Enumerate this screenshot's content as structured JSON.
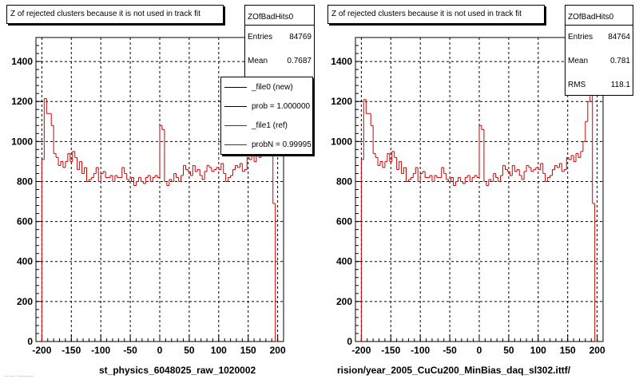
{
  "left_panel": {
    "title": "Z of rejected clusters  because it is not used in track fit",
    "stats": {
      "name": "ZOfBadHits0",
      "entries_label": "Entries",
      "entries": "84769",
      "mean_label": "Mean",
      "mean": "0.7687"
    },
    "legend": [
      {
        "label": "_file0 (new)",
        "color": "#000000"
      },
      {
        "label": "prob = 1.000000",
        "color": "#000000"
      },
      {
        "label": "_file1 (ref)",
        "color": "#cc0000"
      },
      {
        "label": "probN = 0.99995",
        "color": "#cc0000"
      }
    ],
    "xtitle": "st_physics_6048025_raw_1020002"
  },
  "right_panel": {
    "title": "Z of rejected clusters  because it is not used in track fit",
    "stats": {
      "name": "ZOfBadHits0",
      "entries_label": "Entries",
      "entries": "84764",
      "mean_label": "Mean",
      "mean": "0.781",
      "rms_label": "RMS",
      "rms": "118.1"
    },
    "xtitle": "rision/year_2005_CuCu200_MinBias_daq_sl302.ittf/"
  },
  "footnote": "...  ...  .  ...........",
  "colors": {
    "hist_line": "#cc0000",
    "grid": "#000000"
  },
  "chart_data": [
    {
      "type": "histogram",
      "xlim": [
        -210,
        210
      ],
      "ylim": [
        0,
        1520
      ],
      "xticks": [
        -200,
        -150,
        -100,
        -50,
        0,
        50,
        100,
        150,
        200
      ],
      "yticks": [
        0,
        200,
        400,
        600,
        800,
        1000,
        1200,
        1400
      ],
      "grid": true,
      "bin_width": 4,
      "x_start": -200,
      "series": [
        {
          "values": [
            910,
            1215,
            1140,
            1140,
            1080,
            940,
            920,
            880,
            900,
            870,
            900,
            940,
            900,
            950,
            920,
            860,
            900,
            840,
            870,
            800,
            810,
            820,
            840,
            870,
            800,
            840,
            850,
            820,
            820,
            830,
            800,
            830,
            820,
            820,
            870,
            840,
            810,
            800,
            820,
            780,
            800,
            820,
            800,
            790,
            820,
            830,
            800,
            820,
            830,
            820,
            1080,
            1060,
            800,
            780,
            810,
            800,
            840,
            820,
            800,
            830,
            880,
            860,
            850,
            830,
            880,
            850,
            860,
            830,
            810,
            850,
            880,
            870,
            850,
            860,
            870,
            860,
            890,
            840,
            800,
            820,
            830,
            860,
            880,
            870,
            890,
            850,
            860,
            920,
            910,
            930,
            900,
            940,
            920,
            950,
            1000,
            1050,
            1000,
            960,
            690,
            0
          ]
        }
      ]
    },
    {
      "type": "histogram",
      "xlim": [
        -210,
        210
      ],
      "ylim": [
        0,
        1520
      ],
      "xticks": [
        -200,
        -150,
        -100,
        -50,
        0,
        50,
        100,
        150,
        200
      ],
      "yticks": [
        0,
        200,
        400,
        600,
        800,
        1000,
        1200,
        1400
      ],
      "grid": true,
      "bin_width": 4,
      "x_start": -200,
      "series": [
        {
          "values": [
            910,
            1210,
            1140,
            1140,
            1080,
            940,
            920,
            880,
            900,
            870,
            900,
            940,
            900,
            950,
            920,
            860,
            900,
            840,
            870,
            800,
            810,
            820,
            840,
            870,
            800,
            840,
            850,
            820,
            820,
            830,
            800,
            830,
            820,
            820,
            870,
            840,
            810,
            800,
            820,
            780,
            800,
            820,
            800,
            790,
            820,
            830,
            800,
            820,
            830,
            820,
            1080,
            1060,
            800,
            780,
            810,
            800,
            840,
            820,
            800,
            830,
            880,
            860,
            850,
            830,
            880,
            850,
            860,
            830,
            810,
            850,
            880,
            870,
            850,
            860,
            870,
            860,
            890,
            840,
            800,
            820,
            830,
            860,
            880,
            870,
            890,
            850,
            860,
            920,
            910,
            930,
            900,
            940,
            920,
            950,
            1000,
            1100,
            1200,
            1250,
            690,
            0
          ]
        }
      ]
    }
  ]
}
